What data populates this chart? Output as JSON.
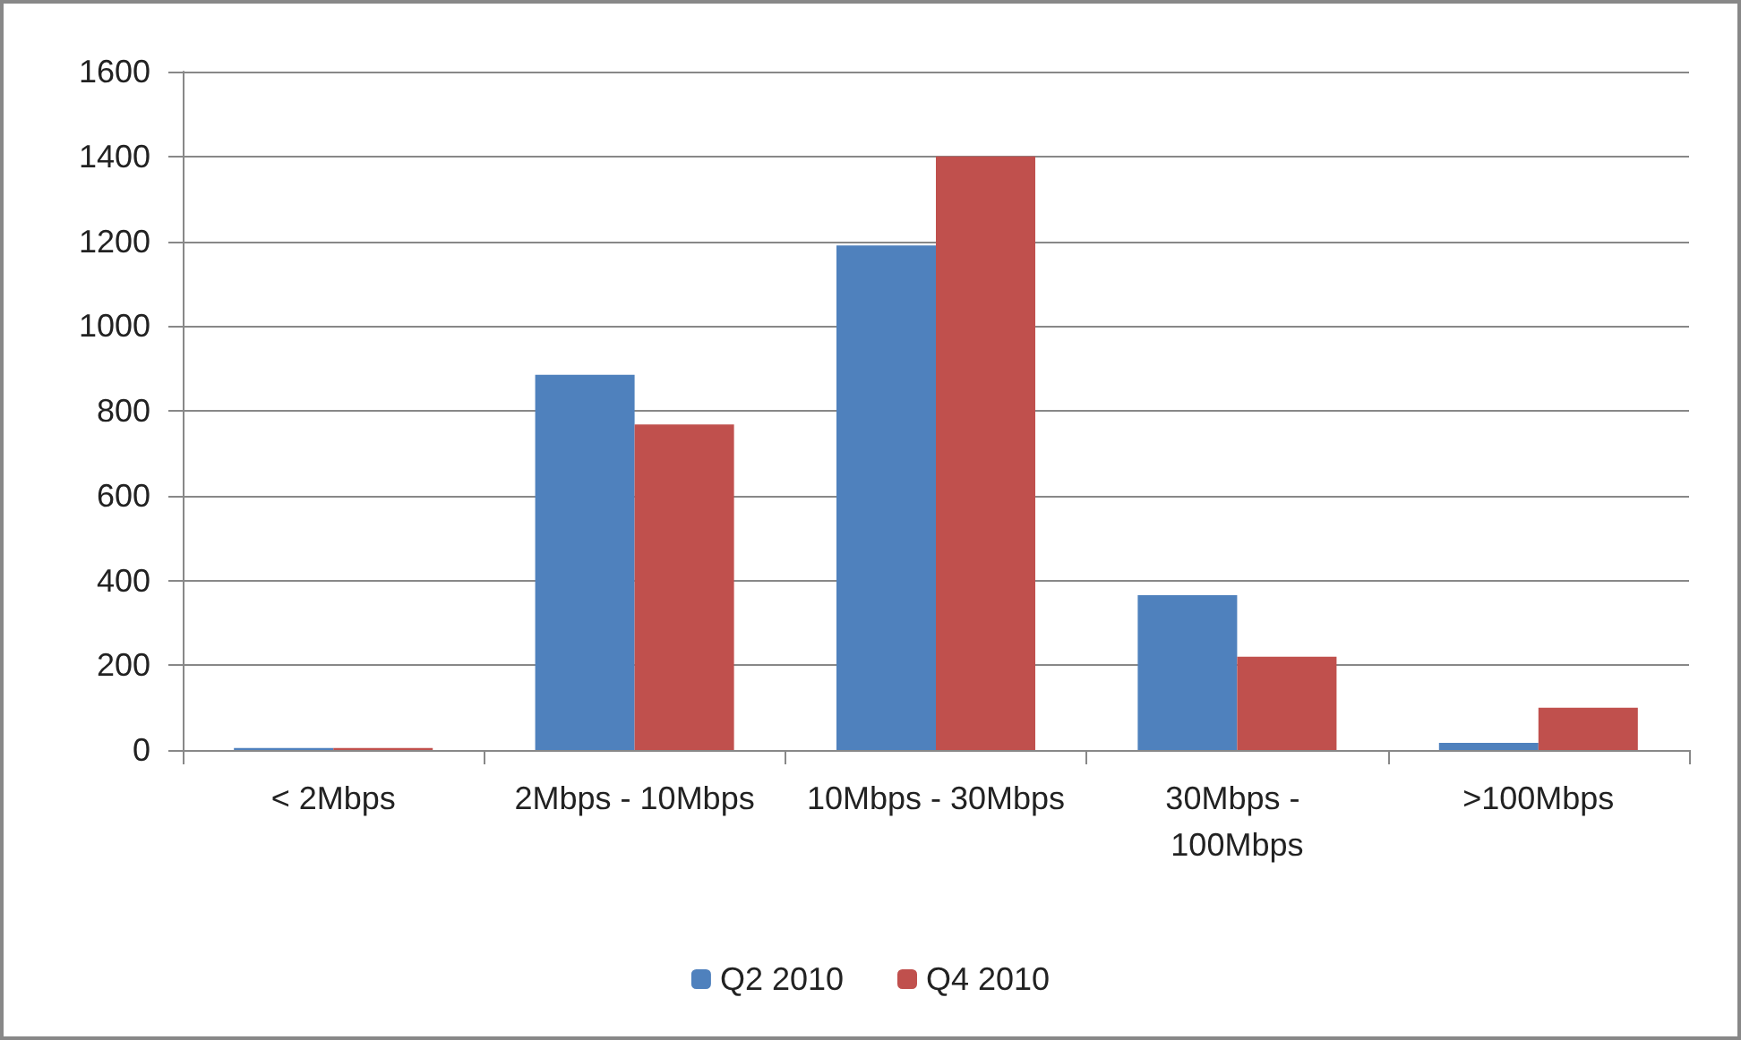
{
  "chart_data": {
    "type": "bar",
    "categories": [
      "< 2Mbps",
      "2Mbps - 10Mbps",
      "10Mbps - 30Mbps",
      "30Mbps - 100Mbps",
      ">100Mbps"
    ],
    "series": [
      {
        "name": "Q2 2010",
        "color": "#4f81bd",
        "values": [
          5,
          885,
          1190,
          365,
          17
        ]
      },
      {
        "name": "Q4 2010",
        "color": "#c0504d",
        "values": [
          5,
          768,
          1400,
          220,
          100
        ]
      }
    ],
    "ylim": [
      0,
      1600
    ],
    "yticks": [
      0,
      200,
      400,
      600,
      800,
      1000,
      1200,
      1400,
      1600
    ],
    "grid": "y",
    "legend": "bottom"
  }
}
